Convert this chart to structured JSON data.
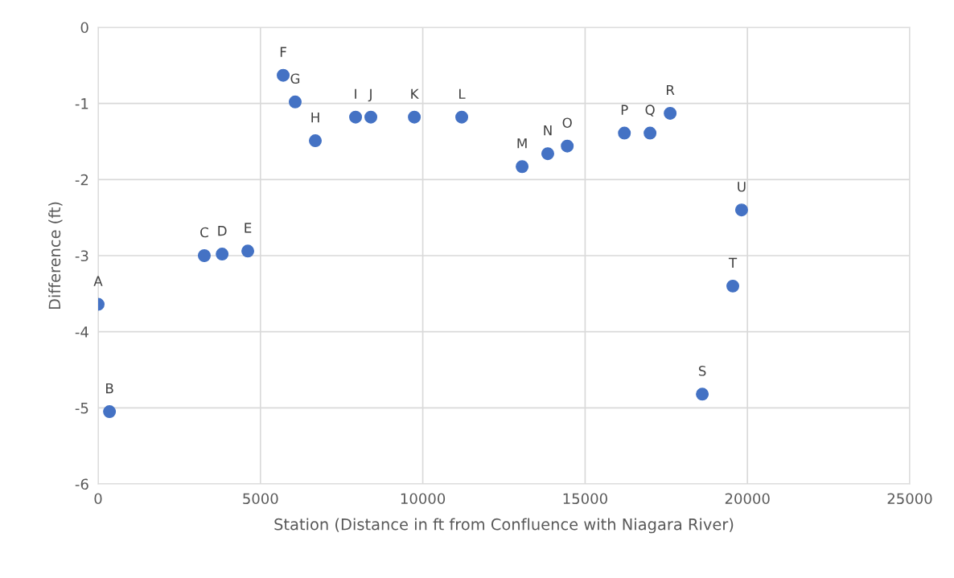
{
  "chart_data": {
    "type": "scatter",
    "xlabel": "Station (Distance in ft from Confluence with Niagara River)",
    "ylabel": "Difference (ft)",
    "x": [
      0,
      350,
      3270,
      3820,
      4610,
      5700,
      6070,
      6690,
      7930,
      8400,
      9740,
      11200,
      13060,
      13850,
      14450,
      16210,
      17000,
      17620,
      18610,
      19550,
      19820
    ],
    "series": [
      {
        "color": "#4472c4",
        "values": [
          -3.64,
          -5.05,
          -3.0,
          -2.98,
          -2.94,
          -0.63,
          -0.98,
          -1.49,
          -1.18,
          -1.18,
          -1.18,
          -1.18,
          -1.83,
          -1.66,
          -1.56,
          -1.39,
          -1.39,
          -1.13,
          -4.82,
          -3.4,
          -2.4
        ]
      }
    ],
    "annotations": [
      {
        "text": "A",
        "x": 0,
        "y": -3.64
      },
      {
        "text": "B",
        "x": 350,
        "y": -5.05
      },
      {
        "text": "C",
        "x": 3270,
        "y": -3.0
      },
      {
        "text": "D",
        "x": 3820,
        "y": -2.98
      },
      {
        "text": "E",
        "x": 4610,
        "y": -2.94
      },
      {
        "text": "F",
        "x": 5700,
        "y": -0.63
      },
      {
        "text": "G",
        "x": 6070,
        "y": -0.98
      },
      {
        "text": "H",
        "x": 6690,
        "y": -1.49
      },
      {
        "text": "I",
        "x": 7930,
        "y": -1.18
      },
      {
        "text": "J",
        "x": 8400,
        "y": -1.18
      },
      {
        "text": "K",
        "x": 9740,
        "y": -1.18
      },
      {
        "text": "L",
        "x": 11200,
        "y": -1.18
      },
      {
        "text": "M",
        "x": 13060,
        "y": -1.83
      },
      {
        "text": "N",
        "x": 13850,
        "y": -1.66
      },
      {
        "text": "O",
        "x": 14450,
        "y": -1.56
      },
      {
        "text": "P",
        "x": 16210,
        "y": -1.39
      },
      {
        "text": "Q",
        "x": 17000,
        "y": -1.39
      },
      {
        "text": "R",
        "x": 17620,
        "y": -1.13
      },
      {
        "text": "S",
        "x": 18610,
        "y": -4.82
      },
      {
        "text": "T",
        "x": 19550,
        "y": -3.4
      },
      {
        "text": "U",
        "x": 19820,
        "y": -2.4
      }
    ],
    "xlim": [
      0,
      25000
    ],
    "xticks": [
      0,
      5000,
      10000,
      15000,
      20000,
      25000
    ],
    "ylim": [
      -6,
      0
    ],
    "yticks": [
      -6,
      -5,
      -4,
      -3,
      -2,
      -1,
      0
    ],
    "grid": true,
    "marker": "circle",
    "legend": false
  }
}
